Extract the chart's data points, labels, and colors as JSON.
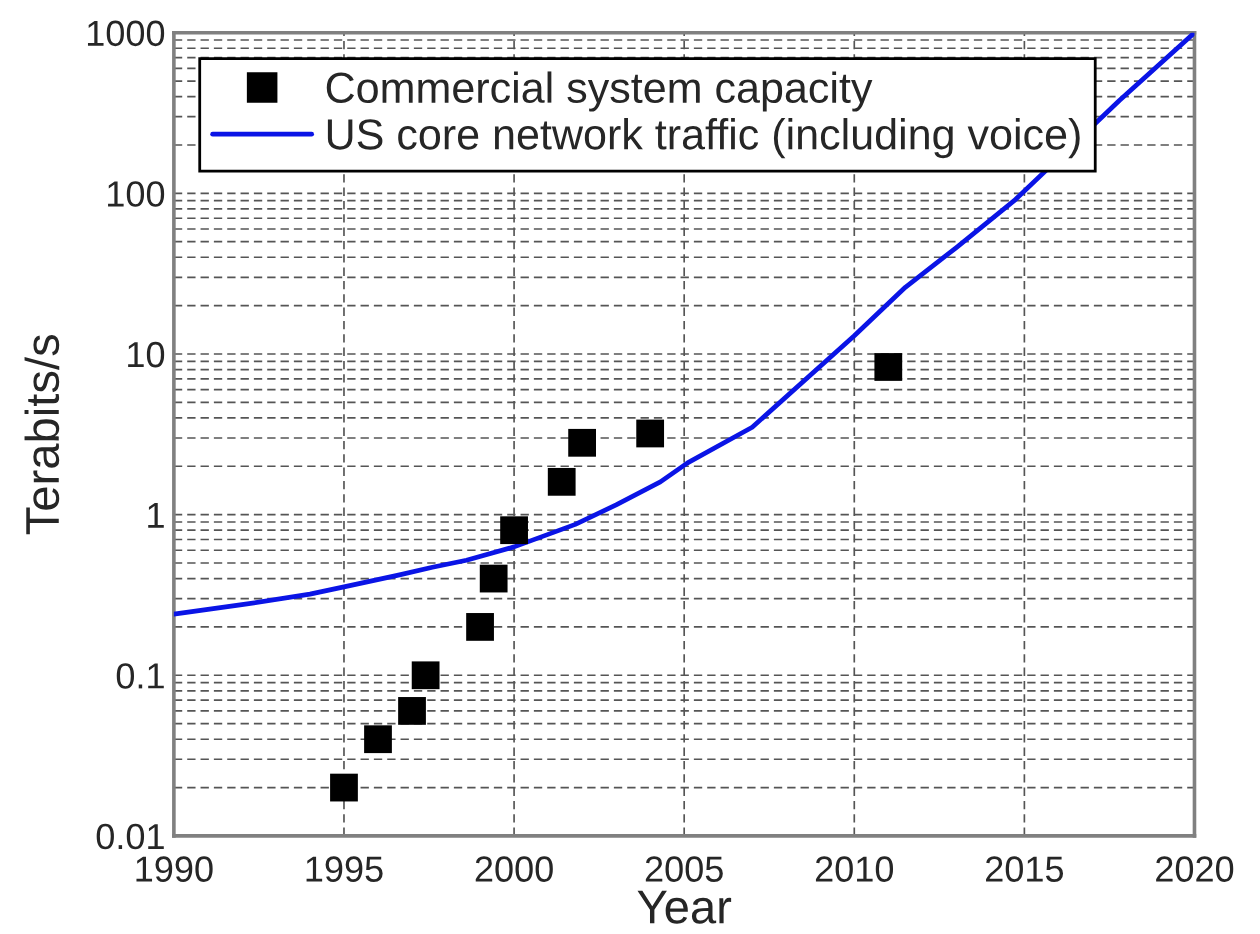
{
  "chart_data": {
    "type": "scatter",
    "xlabel": "Year",
    "ylabel": "Terabits/s",
    "log": "y",
    "xlim": [
      1990,
      2020
    ],
    "ylim": [
      0.01,
      1000
    ],
    "xticks": [
      1990,
      1995,
      2000,
      2005,
      2010,
      2015,
      2020
    ],
    "yticks": [
      0.01,
      0.1,
      1,
      10,
      100,
      1000
    ],
    "grid": true,
    "legend": "top left",
    "series": [
      {
        "name": "Commercial system capacity",
        "marker": "square",
        "color": "#000000",
        "x": [
          1995,
          1996,
          1997,
          1997.4,
          1999,
          1999.4,
          2000,
          2001.4,
          2002,
          2004,
          2011
        ],
        "values": [
          0.02,
          0.04,
          0.06,
          0.1,
          0.2,
          0.4,
          0.8,
          1.6,
          2.8,
          3.2,
          8.3
        ]
      },
      {
        "name": "US core network traffic (including voice)",
        "type": "line",
        "marker": "none",
        "line_style": "solid",
        "color": "#0a14e6",
        "x": [
          1990,
          1992,
          1994,
          1995,
          1996.6,
          1997.6,
          1998.6,
          2000,
          2001.8,
          2003,
          2004.3,
          2005.1,
          2007,
          2010,
          2011.5,
          2013,
          2014.7,
          2017.8,
          2020
        ],
        "values": [
          0.24,
          0.275,
          0.32,
          0.355,
          0.42,
          0.47,
          0.52,
          0.63,
          0.87,
          1.15,
          1.6,
          2.1,
          3.5,
          13,
          26,
          46,
          90,
          380,
          1000
        ]
      }
    ]
  }
}
